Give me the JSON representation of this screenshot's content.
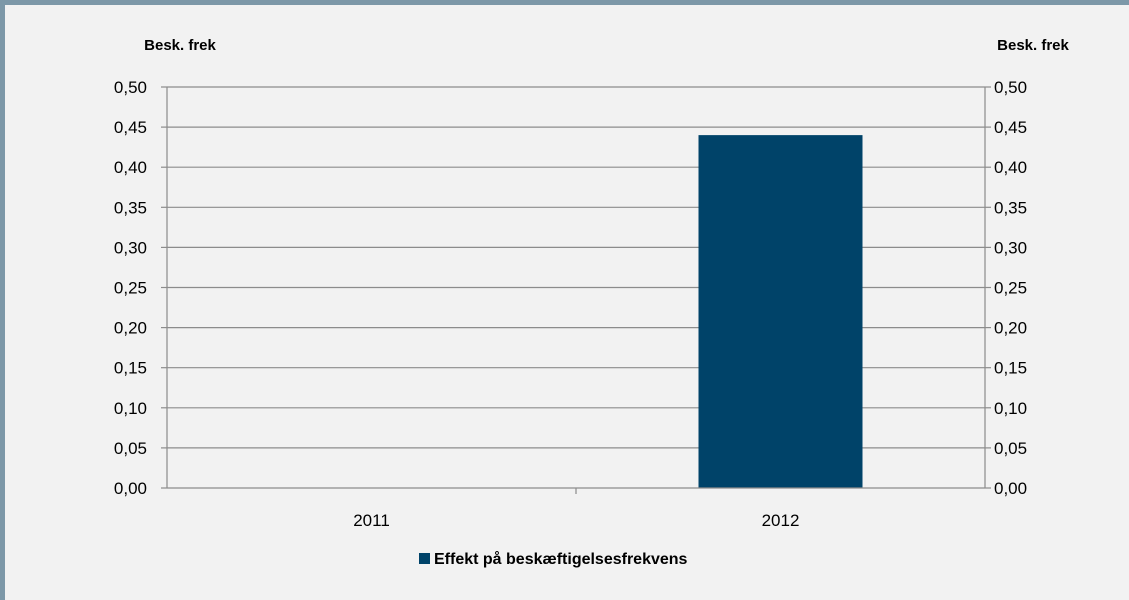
{
  "chart_data": {
    "type": "bar",
    "categories": [
      "2011",
      "2012"
    ],
    "series": [
      {
        "name": "Effekt på beskæftigelsesfrekvens",
        "values": [
          0,
          0.44
        ],
        "color": "#004369"
      }
    ],
    "ylabel_left": "Besk. frek",
    "ylabel_right": "Besk. frek",
    "ylim": [
      0,
      0.5
    ],
    "yticks": [
      "0,00",
      "0,05",
      "0,10",
      "0,15",
      "0,20",
      "0,25",
      "0,30",
      "0,35",
      "0,40",
      "0,45",
      "0,50"
    ],
    "grid": true,
    "legend_position": "bottom"
  }
}
